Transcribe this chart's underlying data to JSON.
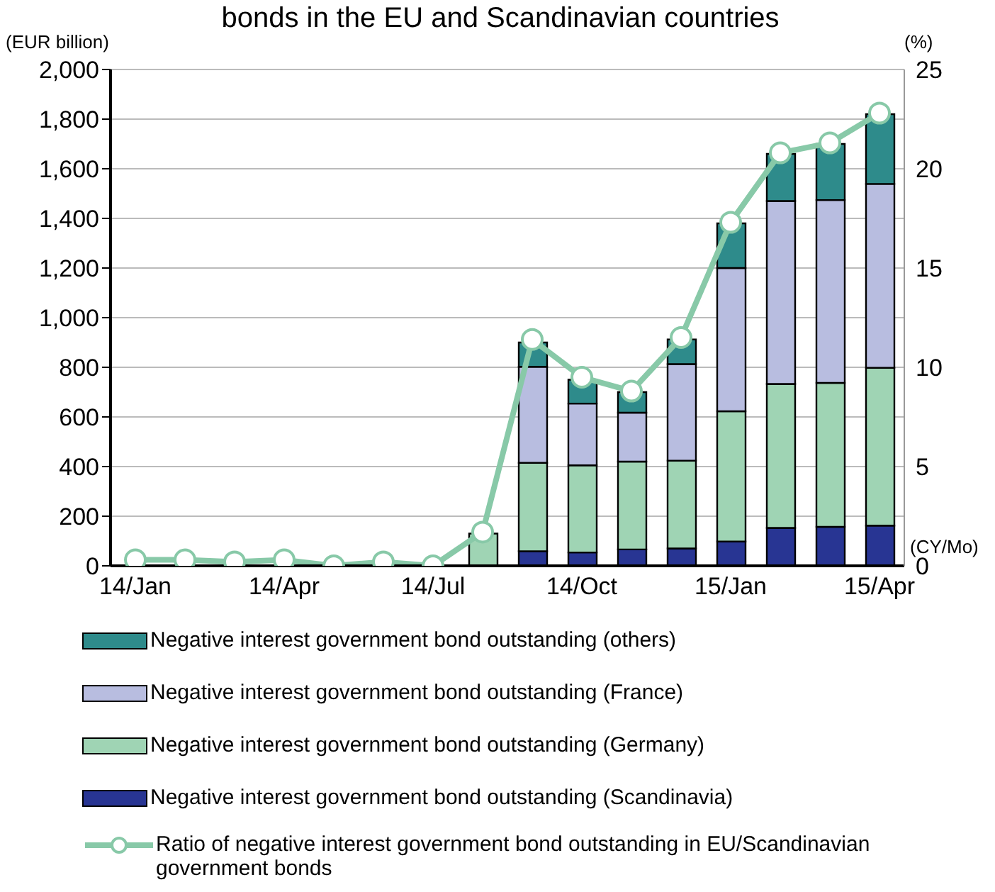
{
  "chart_data": {
    "type": "bar",
    "title": "bonds in the EU and Scandinavian countries",
    "xlabel": "(CY/Mo)",
    "ylabel": "(EUR billion)",
    "y2label": "(%)",
    "categories": [
      "14/Jan",
      null,
      null,
      "14/Apr",
      null,
      null,
      "14/Jul",
      null,
      null,
      "14/Oct",
      null,
      null,
      "15/Jan",
      null,
      null,
      "15/Apr"
    ],
    "stacked": true,
    "grid": "y",
    "legend": "bottom",
    "marker": "circle",
    "line_style": "solid",
    "ylim": [
      0,
      2000
    ],
    "yticks": [
      {
        "value": 0,
        "label": "0"
      },
      {
        "value": 200,
        "label": "200"
      },
      {
        "value": 400,
        "label": "400"
      },
      {
        "value": 600,
        "label": "600"
      },
      {
        "value": 800,
        "label": "800"
      },
      {
        "value": 1000,
        "label": "1,000"
      },
      {
        "value": 1200,
        "label": "1,200"
      },
      {
        "value": 1400,
        "label": "1,400"
      },
      {
        "value": 1600,
        "label": "1,600"
      },
      {
        "value": 1800,
        "label": "1,800"
      },
      {
        "value": 2000,
        "label": "2,000"
      }
    ],
    "y2lim": [
      0,
      25
    ],
    "y2ticks": [
      0,
      5,
      10,
      15,
      20,
      25
    ],
    "series": [
      {
        "name": "Negative interest government bond outstanding (Scandinavia)",
        "color": "#283593",
        "values": [
          null,
          0,
          0,
          null,
          0,
          0,
          null,
          0,
          59,
          54,
          66,
          70,
          98,
          153,
          157,
          162
        ]
      },
      {
        "name": "Negative interest government bond outstanding (Germany)",
        "color": "#9fd4b4",
        "values": [
          0,
          0,
          0,
          0,
          0,
          0,
          0,
          130,
          356,
          351,
          354,
          354,
          525,
          580,
          580,
          636
        ]
      },
      {
        "name": "Negative interest government bond outstanding (France)",
        "color": "#b8bde0",
        "values": [
          0,
          0,
          0,
          0,
          0,
          0,
          0,
          0,
          387,
          249,
          197,
          389,
          577,
          737,
          737,
          741
        ]
      },
      {
        "name": "Negative interest government bond outstanding (others)",
        "color": "#2e8b8b",
        "values": [
          0,
          0,
          0,
          0,
          0,
          0,
          0,
          0,
          98,
          96,
          83,
          99,
          180,
          190,
          226,
          281
        ]
      },
      {
        "name": "Ratio of negative interest government bond outstanding in EU/Scandinavian government bonds",
        "type": "line",
        "axis": "y2",
        "color": "#88c9a8",
        "values": [
          0.3,
          0.3,
          0.2,
          0.3,
          0,
          0.2,
          0,
          1.7,
          11.4,
          9.5,
          8.8,
          11.5,
          17.3,
          20.8,
          21.3,
          22.8
        ]
      }
    ]
  }
}
